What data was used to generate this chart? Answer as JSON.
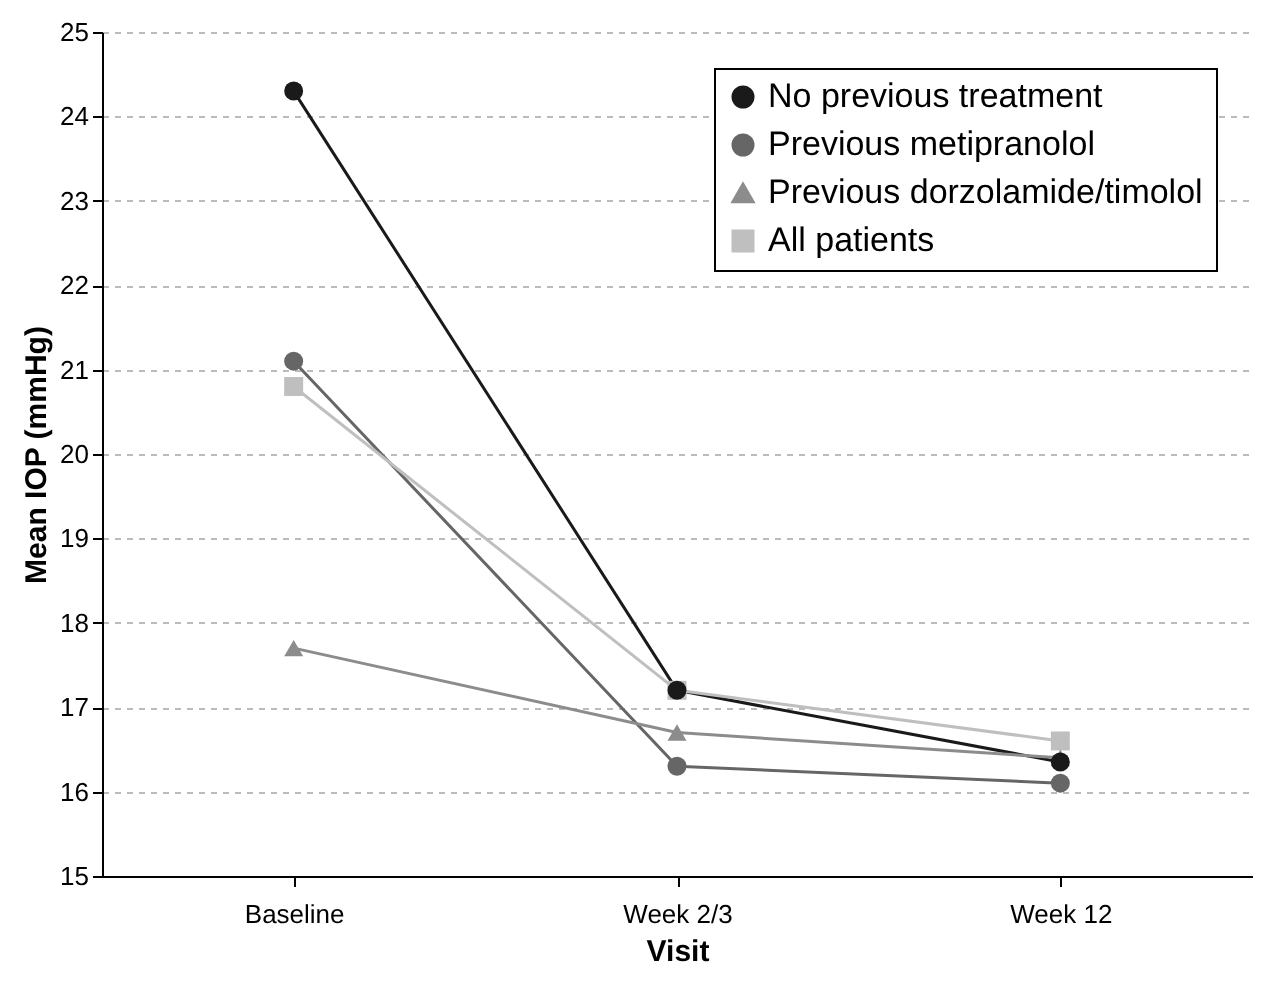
{
  "chart_data": {
    "type": "line",
    "xlabel": "Visit",
    "ylabel": "Mean IOP (mmHg)",
    "categories": [
      "Baseline",
      "Week 2/3",
      "Week 12"
    ],
    "series": [
      {
        "name": "No previous treatment",
        "color": "#1a1a1a",
        "marker": "circle",
        "values": [
          24.3,
          17.2,
          16.35
        ]
      },
      {
        "name": "Previous metipranolol",
        "color": "#666666",
        "marker": "circle",
        "values": [
          21.1,
          16.3,
          16.1
        ]
      },
      {
        "name": "Previous dorzolamide/timolol",
        "color": "#8c8c8c",
        "marker": "triangle",
        "values": [
          17.7,
          16.7,
          16.4
        ]
      },
      {
        "name": "All patients",
        "color": "#bfbfbf",
        "marker": "square",
        "values": [
          20.8,
          17.2,
          16.6
        ]
      }
    ],
    "ylim": [
      15,
      25
    ],
    "yticks": [
      15,
      16,
      17,
      18,
      19,
      20,
      21,
      22,
      23,
      24,
      25
    ],
    "grid": "y",
    "legend": "top right",
    "line_style": "solid"
  }
}
